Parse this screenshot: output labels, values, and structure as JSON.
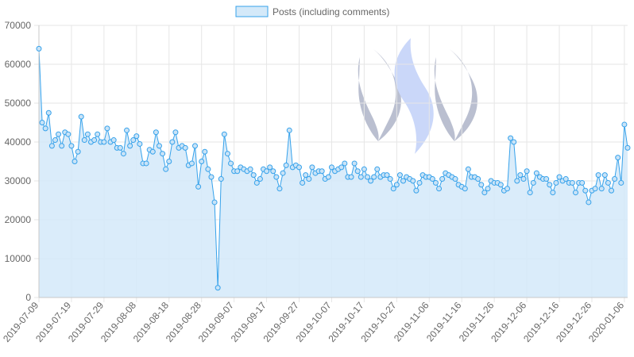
{
  "chart_data": {
    "type": "area",
    "title": "",
    "xlabel": "",
    "ylabel": "",
    "legend": {
      "position": "top",
      "entries": [
        "Posts (including comments)"
      ]
    },
    "grid": true,
    "ylim": [
      0,
      70000
    ],
    "y_ticks": [
      0,
      10000,
      20000,
      30000,
      40000,
      50000,
      60000,
      70000
    ],
    "y_tick_labels": [
      "0",
      "10000",
      "20000",
      "30000",
      "40000",
      "50000",
      "60000",
      "70000"
    ],
    "x_tick_labels": [
      "2019-07-09",
      "2019-07-19",
      "2019-07-29",
      "2019-08-08",
      "2019-08-18",
      "2019-08-28",
      "2019-09-07",
      "2019-09-17",
      "2019-09-27",
      "2019-10-07",
      "2019-10-17",
      "2019-10-27",
      "2019-11-06",
      "2019-11-16",
      "2019-11-26",
      "2019-12-06",
      "2019-12-16",
      "2019-12-26",
      "2020-01-06"
    ],
    "start_date": "2019-07-09",
    "colors": {
      "line": "#36a2eb",
      "fill": "#d4e9f9",
      "grid": "#e6e6e6",
      "axis_text": "#666666"
    },
    "watermark_icon": "steem-logo",
    "series": [
      {
        "name": "Posts (including comments)",
        "values": [
          64000,
          45000,
          43500,
          47500,
          39000,
          40500,
          42000,
          39000,
          42500,
          42000,
          39000,
          35000,
          37500,
          46500,
          40500,
          42000,
          40000,
          40500,
          42000,
          40000,
          40000,
          43500,
          40000,
          40500,
          38500,
          38500,
          37000,
          43000,
          39000,
          40500,
          41500,
          39500,
          34500,
          34500,
          38000,
          37500,
          42500,
          39000,
          37000,
          33000,
          35000,
          40000,
          42500,
          38500,
          39000,
          38500,
          34000,
          34500,
          39000,
          28500,
          35000,
          37500,
          33000,
          31000,
          24500,
          2500,
          30500,
          42000,
          37000,
          34500,
          32500,
          32500,
          33500,
          33000,
          32500,
          33000,
          31500,
          29500,
          30500,
          33000,
          32500,
          33500,
          32500,
          31000,
          28000,
          32000,
          34000,
          43000,
          33500,
          34000,
          33500,
          29500,
          31500,
          30500,
          33500,
          32000,
          32500,
          32500,
          30500,
          31000,
          33500,
          32500,
          33000,
          33500,
          34500,
          31000,
          31000,
          34500,
          32500,
          31000,
          33000,
          31000,
          30000,
          31000,
          33000,
          31000,
          31500,
          31500,
          30500,
          28000,
          29000,
          31500,
          30000,
          31000,
          30500,
          30000,
          27500,
          29500,
          31500,
          31000,
          31000,
          30500,
          29500,
          28000,
          30500,
          32000,
          31500,
          31000,
          30500,
          29000,
          28500,
          28000,
          33000,
          31000,
          31000,
          30500,
          29000,
          27000,
          28000,
          30000,
          29500,
          29500,
          29000,
          27500,
          28000,
          41000,
          40000,
          30000,
          31500,
          30500,
          32500,
          27000,
          29500,
          32000,
          31000,
          30500,
          30500,
          29000,
          27000,
          29500,
          31000,
          30000,
          30500,
          29500,
          29500,
          27000,
          29500,
          29500,
          27500,
          24500,
          27500,
          28000,
          31500,
          28000,
          31500,
          29500,
          27500,
          30500,
          36000,
          29500,
          44500,
          38500
        ]
      }
    ]
  }
}
